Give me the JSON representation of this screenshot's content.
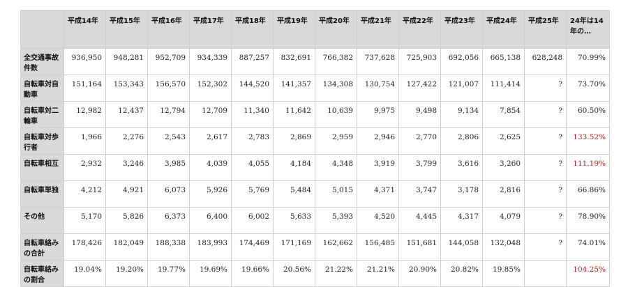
{
  "table": {
    "headers": [
      "平成14年",
      "平成15年",
      "平成16年",
      "平成17年",
      "平成18年",
      "平成19年",
      "平成20年",
      "平成21年",
      "平成22年",
      "平成23年",
      "平成24年",
      "平成25年",
      "24年は14年の…"
    ],
    "rows": [
      {
        "label": "全交通事故件数",
        "values": [
          "936,950",
          "948,281",
          "952,709",
          "934,339",
          "887,257",
          "832,691",
          "766,382",
          "737,628",
          "725,903",
          "692,056",
          "665,138",
          "628,248",
          "70.99%"
        ],
        "highlight": false
      },
      {
        "label": "自転車対自動車",
        "values": [
          "151,164",
          "153,343",
          "156,570",
          "152,302",
          "144,520",
          "141,357",
          "134,308",
          "130,754",
          "127,422",
          "121,007",
          "111,414",
          "?",
          "73.70%"
        ],
        "highlight": false
      },
      {
        "label": "自転車対二輪車",
        "values": [
          "12,982",
          "12,437",
          "12,794",
          "12,709",
          "11,340",
          "11,642",
          "10,639",
          "9,975",
          "9,498",
          "9,134",
          "7,854",
          "?",
          "60.50%"
        ],
        "highlight": false
      },
      {
        "label": "自転車対歩行者",
        "values": [
          "1,966",
          "2,276",
          "2,543",
          "2,617",
          "2,783",
          "2,869",
          "2,959",
          "2,946",
          "2,770",
          "2,806",
          "2,625",
          "?",
          "133.52%"
        ],
        "highlight": true
      },
      {
        "label": "自転車相互",
        "values": [
          "2,932",
          "3,246",
          "3,985",
          "4,039",
          "4,055",
          "4,184",
          "4,348",
          "3,919",
          "3,799",
          "3,616",
          "3,260",
          "?",
          "111.19%"
        ],
        "highlight": true
      },
      {
        "label": "自転車単独",
        "values": [
          "4,212",
          "4,921",
          "6,073",
          "5,926",
          "5,769",
          "5,484",
          "5,015",
          "4,371",
          "3,747",
          "3,178",
          "2,816",
          "?",
          "66.86%"
        ],
        "highlight": false
      },
      {
        "label": "その他",
        "values": [
          "5,170",
          "5,826",
          "6,373",
          "6,400",
          "6,002",
          "5,633",
          "5,393",
          "4,520",
          "4,445",
          "4,317",
          "4,079",
          "?",
          "78.90%"
        ],
        "highlight": false
      },
      {
        "label": "自転車絡みの合計",
        "values": [
          "178,426",
          "182,049",
          "188,338",
          "183,993",
          "174,469",
          "171,169",
          "162,662",
          "156,485",
          "151,681",
          "144,058",
          "132,048",
          "?",
          "74.01%"
        ],
        "highlight": false
      },
      {
        "label": "自転車絡みの割合",
        "values": [
          "19.04%",
          "19.20%",
          "19.77%",
          "19.69%",
          "19.66%",
          "20.56%",
          "21.22%",
          "21.21%",
          "20.90%",
          "20.82%",
          "19.85%",
          "",
          "104.25%"
        ],
        "highlight": true
      }
    ],
    "colors": {
      "header_bg": "#d9d9d9",
      "border": "#cfcfcf",
      "highlight": "#b91c1c"
    }
  }
}
